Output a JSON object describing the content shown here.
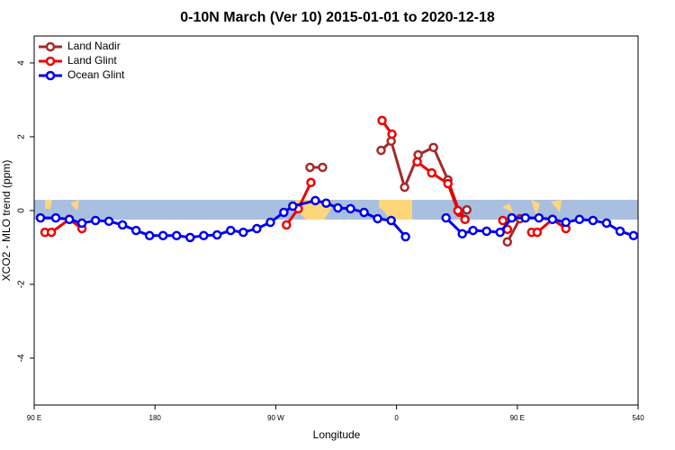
{
  "chart_data": {
    "type": "line",
    "title": "0-10N March (Ver 10)   2015-01-01 to 2020-12-18",
    "x_label": "Longitude",
    "y_label": "XCO2 - MLO trend (ppm)",
    "xlim": [
      90,
      540
    ],
    "ylim": [
      -5.27,
      4.73
    ],
    "xticks": [
      {
        "value": 90,
        "label": "90 E"
      },
      180,
      {
        "value": 270,
        "label": "90 W"
      },
      {
        "value": 360,
        "label": "0"
      },
      {
        "value": 450,
        "label": "90 E"
      },
      540
    ],
    "yticks": [
      -4,
      -2,
      0,
      2,
      4
    ],
    "legend": "top-left",
    "series": [
      {
        "name": "Land Nadir",
        "color": "#a52a2a",
        "x": [
          295.5,
          304.9,
          null,
          348.5,
          356,
          366,
          376.1,
          387.5,
          398.3,
          407,
          412.4,
          null,
          442.6,
          452
        ],
        "values": [
          1.17,
          1.17,
          null,
          1.63,
          1.88,
          0.63,
          1.51,
          1.71,
          0.83,
          -0.05,
          0.02,
          null,
          -0.85,
          -0.22
        ]
      },
      {
        "name": "Land Glint",
        "color": "#ee0000",
        "x": [
          98,
          102.8,
          116.2,
          125.6,
          null,
          278,
          286.8,
          296.2,
          null,
          349.2,
          356.6,
          null,
          375.4,
          386.2,
          398.3,
          405.7,
          411,
          null,
          439.2,
          442.6,
          null,
          460.7,
          464.8,
          476.2,
          486.2
        ],
        "values": [
          -0.59,
          -0.59,
          -0.24,
          -0.49,
          null,
          -0.39,
          0.05,
          0.76,
          null,
          2.44,
          2.07,
          null,
          1.32,
          1.02,
          0.73,
          0,
          -0.24,
          null,
          -0.27,
          -0.51,
          null,
          -0.59,
          -0.59,
          -0.24,
          -0.49
        ]
      },
      {
        "name": "Ocean Glint",
        "color": "#0000ee",
        "x": [
          94.7,
          106.1,
          116.2,
          125.6,
          135.7,
          145.7,
          155.8,
          165.9,
          176,
          186,
          196.1,
          206.2,
          216.3,
          226.3,
          236.4,
          245.8,
          255.9,
          266,
          276,
          282.7,
          299.5,
          307.6,
          316.3,
          325.7,
          335.8,
          345.9,
          356,
          366.7,
          null,
          396.9,
          409,
          417,
          427.1,
          437.2,
          445.9,
          456,
          466.1,
          476.2,
          486.2,
          496.3,
          506.4,
          516.5,
          526.6,
          536.6
        ],
        "values": [
          -0.2,
          -0.2,
          -0.24,
          -0.34,
          -0.27,
          -0.29,
          -0.39,
          -0.54,
          -0.68,
          -0.68,
          -0.68,
          -0.73,
          -0.68,
          -0.66,
          -0.54,
          -0.59,
          -0.49,
          -0.32,
          -0.05,
          0.12,
          0.27,
          0.2,
          0.07,
          0.05,
          -0.05,
          -0.22,
          -0.27,
          -0.71,
          null,
          -0.2,
          -0.63,
          -0.54,
          -0.56,
          -0.59,
          -0.2,
          -0.2,
          -0.2,
          -0.24,
          -0.32,
          -0.24,
          -0.27,
          -0.34,
          -0.56,
          -0.68
        ]
      }
    ]
  }
}
